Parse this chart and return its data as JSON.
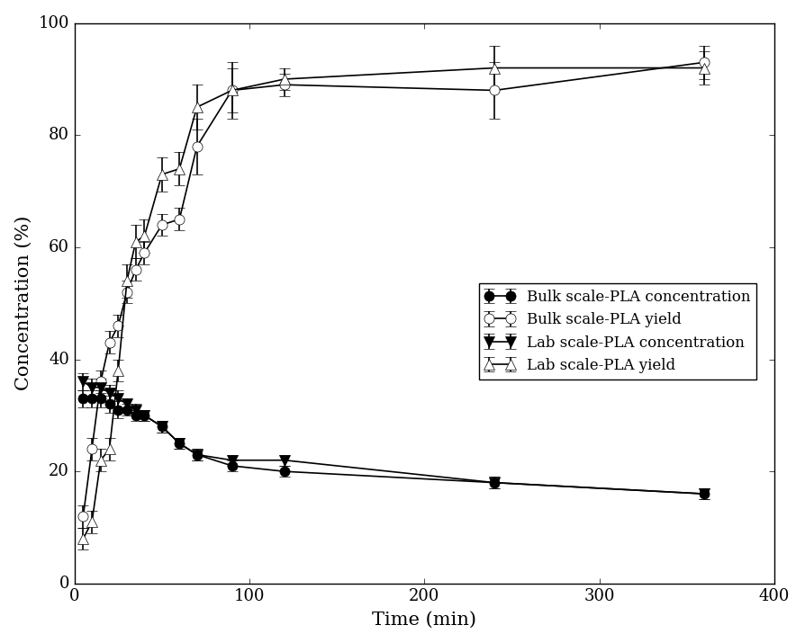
{
  "title": "",
  "xlabel": "Time (min)",
  "ylabel": "Concentration (%)",
  "xlim": [
    0,
    400
  ],
  "ylim": [
    0,
    100
  ],
  "xticks": [
    0,
    100,
    200,
    300,
    400
  ],
  "yticks": [
    0,
    20,
    40,
    60,
    80,
    100
  ],
  "bulk_conc_x": [
    5,
    10,
    15,
    20,
    25,
    30,
    35,
    40,
    50,
    60,
    70,
    90,
    120,
    240,
    360
  ],
  "bulk_conc_y": [
    33,
    33,
    33,
    32,
    31,
    31,
    30,
    30,
    28,
    25,
    23,
    21,
    20,
    18,
    16
  ],
  "bulk_conc_yerr": [
    1.5,
    1.5,
    1.5,
    1.5,
    1.5,
    1.0,
    1.0,
    1.0,
    1.0,
    1.0,
    1.0,
    1.0,
    1.0,
    1.0,
    1.0
  ],
  "bulk_yield_x": [
    5,
    10,
    15,
    20,
    25,
    30,
    35,
    40,
    50,
    60,
    70,
    90,
    120,
    240,
    360
  ],
  "bulk_yield_y": [
    12,
    24,
    36,
    43,
    46,
    52,
    56,
    59,
    64,
    65,
    78,
    88,
    89,
    88,
    93
  ],
  "bulk_yield_yerr": [
    2,
    2,
    2,
    2,
    2,
    2,
    2,
    2,
    2,
    2,
    5,
    5,
    2,
    5,
    3
  ],
  "lab_conc_x": [
    5,
    10,
    15,
    20,
    25,
    30,
    35,
    40,
    50,
    60,
    70,
    90,
    120,
    240,
    360
  ],
  "lab_conc_y": [
    36,
    35,
    35,
    34,
    33,
    32,
    31,
    30,
    28,
    25,
    23,
    22,
    22,
    18,
    16
  ],
  "lab_conc_yerr": [
    1.5,
    1.5,
    1.5,
    1.5,
    1.5,
    1.0,
    1.0,
    1.0,
    1.0,
    1.0,
    1.0,
    1.0,
    1.0,
    1.0,
    1.0
  ],
  "lab_yield_x": [
    5,
    10,
    15,
    20,
    25,
    30,
    35,
    40,
    50,
    60,
    70,
    90,
    120,
    240,
    360
  ],
  "lab_yield_y": [
    8,
    11,
    22,
    24,
    38,
    54,
    61,
    62,
    73,
    74,
    85,
    88,
    90,
    92,
    92
  ],
  "lab_yield_yerr": [
    2,
    2,
    2,
    2,
    2,
    3,
    3,
    3,
    3,
    3,
    4,
    4,
    2,
    4,
    3
  ],
  "legend_labels": [
    "Bulk scale-PLA concentration",
    "Bulk scale-PLA yield",
    "Lab scale-PLA concentration",
    "Lab scale-PLA yield"
  ],
  "line_color": "#000000",
  "marker_size": 8,
  "capsize": 4
}
